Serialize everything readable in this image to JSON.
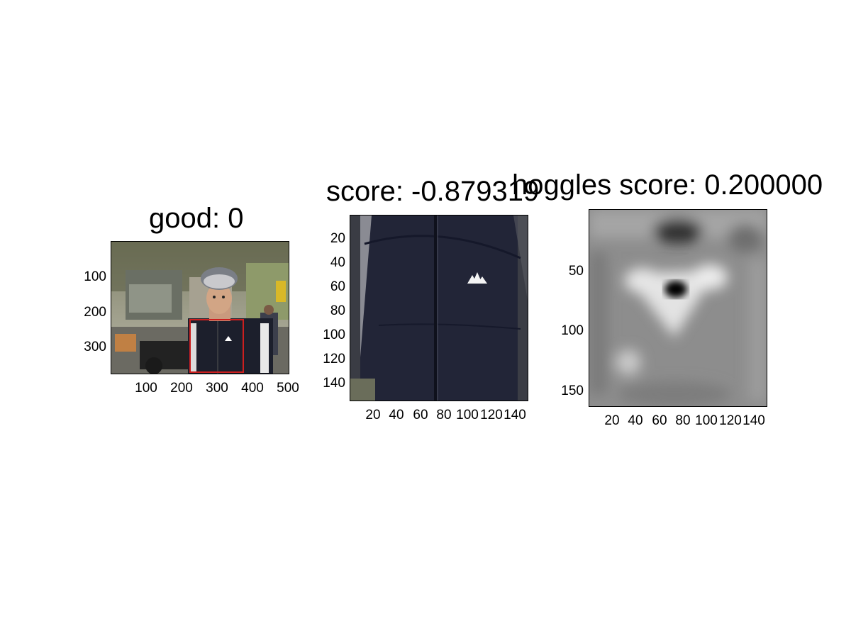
{
  "chart_data": [
    {
      "type": "image",
      "title": "good: 0",
      "xlim": [
        0,
        500
      ],
      "ylim": [
        0,
        375
      ],
      "xticks": [
        "100",
        "200",
        "300",
        "400",
        "500"
      ],
      "yticks": [
        "100",
        "200",
        "300"
      ],
      "xtick_values": [
        100,
        200,
        300,
        400,
        500
      ],
      "ytick_values": [
        100,
        200,
        300
      ],
      "bounding_box": {
        "x1": 220,
        "y1": 220,
        "x2": 375,
        "y2": 375,
        "color": "#cc1f1f"
      },
      "content": "photo of cyclist in helmet and dark jacket on street"
    },
    {
      "type": "image",
      "title": "score: -0.879319",
      "title_overlap_note_visible": "score: -0.8793",
      "xlim": [
        0,
        150
      ],
      "ylim": [
        0,
        157
      ],
      "xticks": [
        "20",
        "40",
        "60",
        "80",
        "100",
        "120",
        "140"
      ],
      "yticks": [
        "20",
        "40",
        "60",
        "80",
        "100",
        "120",
        "140"
      ],
      "xtick_values": [
        20,
        40,
        60,
        80,
        100,
        120,
        140
      ],
      "ytick_values": [
        20,
        40,
        60,
        80,
        100,
        120,
        140
      ],
      "content": "cropped dark jacket with white logo"
    },
    {
      "type": "heatmap",
      "title": "hoggles score: 0.200000",
      "xlim": [
        0,
        150
      ],
      "ylim": [
        0,
        167
      ],
      "xticks": [
        "20",
        "40",
        "60",
        "80",
        "100",
        "120",
        "140"
      ],
      "yticks": [
        "50",
        "100",
        "150"
      ],
      "xtick_values": [
        20,
        40,
        60,
        80,
        100,
        120,
        140
      ],
      "ytick_values": [
        50,
        100,
        150
      ],
      "colormap": "gray"
    }
  ]
}
